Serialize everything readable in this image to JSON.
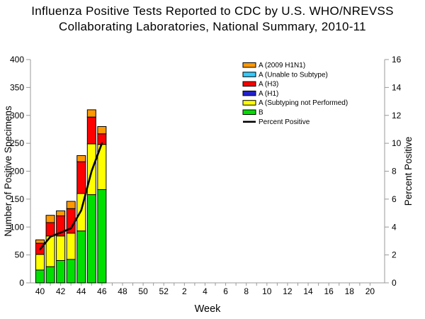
{
  "title": {
    "line1": "Influenza Positive Tests Reported to CDC by U.S. WHO/NREVSS",
    "line2": "Collaborating Laboratories, National Summary, 2010-11"
  },
  "chart_data": {
    "type": "bar",
    "stacked": true,
    "title": "Influenza Positive Tests Reported to CDC by U.S. WHO/NREVSS Collaborating Laboratories, National Summary, 2010-11",
    "xlabel": "Week",
    "ylabel_left": "Number of Positive Specimens",
    "ylabel_right": "Percent Positive",
    "ylim_left": [
      0,
      400
    ],
    "ytick_step_left": 50,
    "ylim_right": [
      0,
      16
    ],
    "ytick_step_right": 2,
    "grid": false,
    "legend_position": "top-right-inside",
    "categories": [
      "40",
      "41",
      "42",
      "43",
      "44",
      "45",
      "46",
      "47",
      "48",
      "49",
      "50",
      "51",
      "52",
      "1",
      "2",
      "3",
      "4",
      "5",
      "6",
      "7",
      "8",
      "9",
      "10",
      "11",
      "12",
      "13",
      "14",
      "15",
      "16",
      "17",
      "18",
      "19",
      "20"
    ],
    "x_labels_shown": [
      "40",
      "42",
      "44",
      "46",
      "48",
      "50",
      "52",
      "2",
      "4",
      "6",
      "8",
      "10",
      "12",
      "14",
      "16",
      "18",
      "20"
    ],
    "bar_weeks": [
      "40",
      "41",
      "42",
      "43",
      "44",
      "45",
      "46"
    ],
    "series": [
      {
        "name": "A (2009 H1N1)",
        "color": "#FF9900",
        "values": [
          6,
          13,
          9,
          13,
          11,
          13,
          13
        ]
      },
      {
        "name": "A (Unable to Subtype)",
        "color": "#33CCFF",
        "values": [
          0,
          0,
          0,
          0,
          0,
          0,
          0
        ]
      },
      {
        "name": "A (H3)",
        "color": "#FF0000",
        "values": [
          20,
          24,
          36,
          44,
          57,
          48,
          19
        ]
      },
      {
        "name": "A (H1)",
        "color": "#2222CC",
        "values": [
          0,
          0,
          0,
          0,
          0,
          0,
          0
        ]
      },
      {
        "name": "A (Subtyping not Performed)",
        "color": "#FFFF00",
        "values": [
          28,
          55,
          44,
          47,
          67,
          91,
          81
        ]
      },
      {
        "name": "B",
        "color": "#00DF00",
        "values": [
          23,
          29,
          40,
          42,
          93,
          158,
          167
        ]
      }
    ],
    "line_series": {
      "name": "Percent Positive",
      "color": "#000000",
      "values": [
        2.4,
        3.3,
        3.6,
        3.9,
        5.2,
        8.0,
        10.0
      ]
    },
    "axis_color": "#999999",
    "text_color": "#000000"
  }
}
